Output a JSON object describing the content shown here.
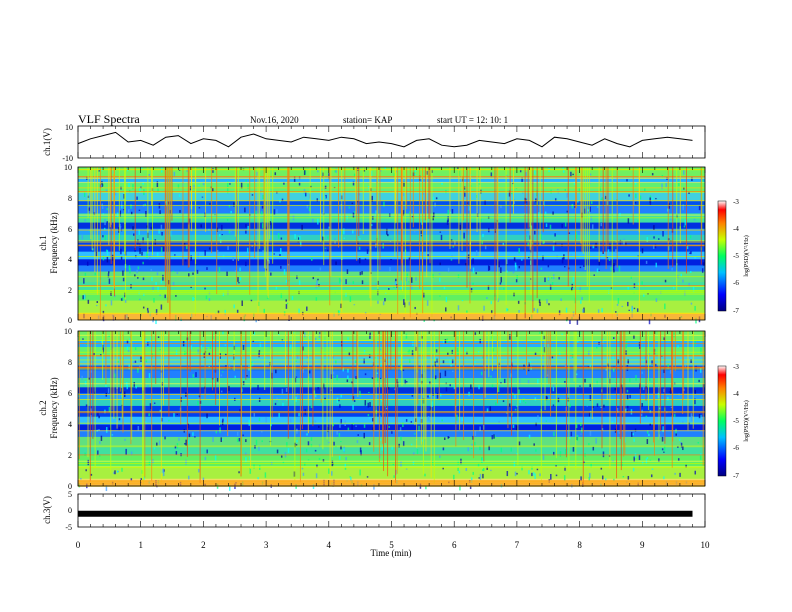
{
  "header": {
    "title": "VLF Spectra",
    "date": "Nov.16, 2020",
    "station": "station= KAP",
    "start": "start  UT =   12: 10: 1"
  },
  "colorbar_label": "log(PSD)(V²/Hz)",
  "chart_data": [
    {
      "type": "line",
      "ylabel": "ch.1(V)",
      "xlim": [
        0,
        10
      ],
      "ylim": [
        -10,
        10
      ],
      "yticks": [
        "10",
        "-10"
      ],
      "x": [
        0,
        0.2,
        0.4,
        0.6,
        0.8,
        1,
        1.2,
        1.4,
        1.6,
        1.8,
        2,
        2.2,
        2.4,
        2.6,
        2.8,
        3,
        3.2,
        3.4,
        3.6,
        3.8,
        4,
        4.2,
        4.4,
        4.6,
        4.8,
        5,
        5.2,
        5.4,
        5.6,
        5.8,
        6,
        6.2,
        6.4,
        6.6,
        6.8,
        7,
        7.2,
        7.4,
        7.6,
        7.8,
        8,
        8.2,
        8.4,
        8.6,
        8.8,
        9,
        9.2,
        9.4,
        9.6,
        9.8
      ],
      "values": [
        -1,
        2,
        4,
        6,
        0,
        1,
        -2,
        3,
        4,
        -1,
        2,
        1,
        -3,
        3,
        5,
        2,
        1,
        0,
        3,
        2,
        1,
        3,
        2,
        -1,
        0,
        -1,
        -3,
        1,
        2,
        -2,
        -3,
        -2,
        1,
        0,
        -1,
        2,
        1,
        -3,
        3,
        2,
        0,
        -2,
        2,
        -1,
        -3,
        1,
        2,
        3,
        2,
        1
      ]
    },
    {
      "type": "heatmap",
      "ylabel": "ch.1\nFrequency (kHz)",
      "xlim": [
        0,
        10
      ],
      "ylim": [
        0,
        10
      ],
      "yticks": [
        "0",
        "2",
        "4",
        "6",
        "8",
        "10"
      ],
      "colorbar": {
        "min": -7,
        "max": -3,
        "ticks": [
          "-3",
          "-4",
          "-5",
          "-6",
          "-7"
        ]
      }
    },
    {
      "type": "heatmap",
      "ylabel": "ch.2\nFrequency (kHz)",
      "xlim": [
        0,
        10
      ],
      "ylim": [
        0,
        10
      ],
      "yticks": [
        "0",
        "2",
        "4",
        "6",
        "8",
        "10"
      ],
      "colorbar": {
        "min": -7,
        "max": -3,
        "ticks": [
          "-3",
          "-4",
          "-5",
          "-6",
          "-7"
        ]
      }
    },
    {
      "type": "line",
      "ylabel": "ch.3(V)",
      "xlim": [
        0,
        10
      ],
      "ylim": [
        -5,
        5
      ],
      "yticks": [
        "5",
        "0",
        "-5"
      ],
      "x": [
        0,
        9.8
      ],
      "values": [
        -1,
        -1
      ]
    }
  ],
  "xaxis": {
    "label": "Time  (min)",
    "ticks": [
      "0",
      "1",
      "2",
      "3",
      "4",
      "5",
      "6",
      "7",
      "8",
      "9",
      "10"
    ]
  }
}
